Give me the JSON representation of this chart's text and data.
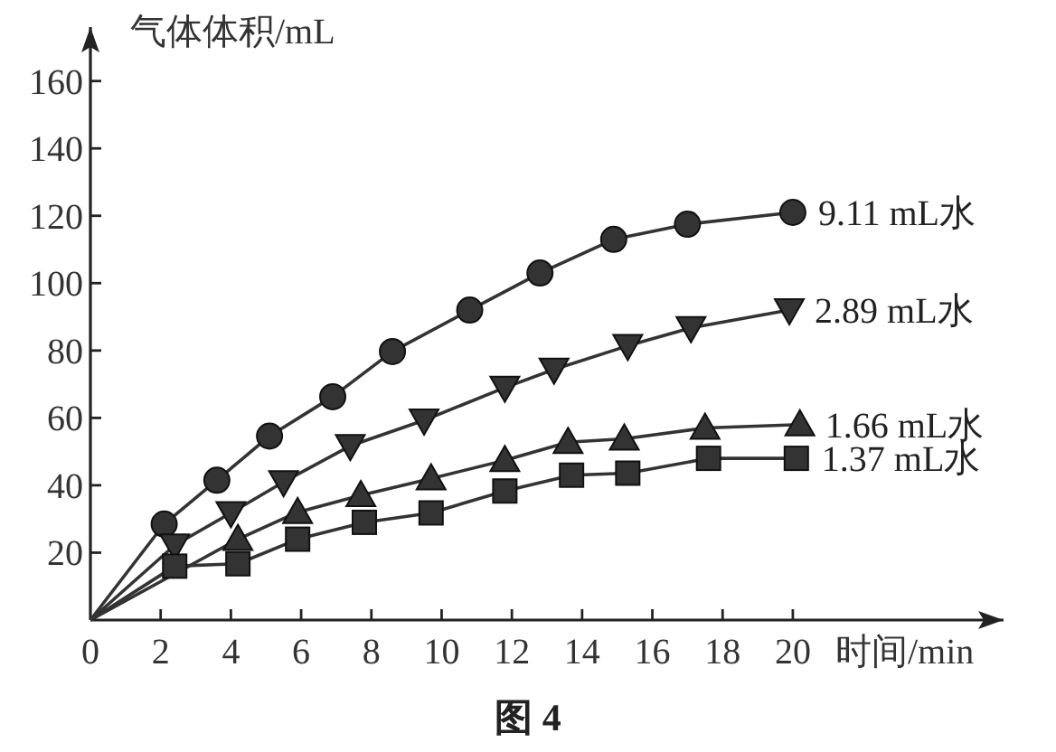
{
  "chart_data": {
    "type": "line",
    "xlabel": "时间/min",
    "ylabel": "气体体积/mL",
    "xlim": [
      0,
      26
    ],
    "ylim": [
      0,
      176
    ],
    "xticks": [
      0,
      2,
      4,
      6,
      8,
      10,
      12,
      14,
      16,
      18,
      20
    ],
    "yticks": [
      20,
      40,
      60,
      80,
      100,
      120,
      140,
      160
    ],
    "grid": false,
    "legend": false,
    "line_style": "solid",
    "series": [
      {
        "name": "9.11 mL水",
        "color": "#333333",
        "marker": "circle",
        "x": [
          0,
          2.1,
          3.6,
          5.1,
          6.9,
          8.6,
          10.8,
          12.8,
          14.9,
          17.0,
          20.0
        ],
        "values": [
          0,
          28.5,
          41.5,
          54.6,
          66.3,
          79.7,
          92,
          103,
          113,
          117.5,
          121
        ]
      },
      {
        "name": "2.89 mL水",
        "color": "#333333",
        "marker": "triangle-down",
        "x": [
          0,
          2.4,
          4.0,
          5.5,
          7.4,
          9.5,
          11.8,
          13.2,
          15.3,
          17.1,
          19.9
        ],
        "values": [
          0,
          22.2,
          31.8,
          41,
          51.7,
          59.3,
          69,
          74.4,
          81.4,
          86.7,
          92
        ]
      },
      {
        "name": "1.66 mL水",
        "color": "#333333",
        "marker": "triangle",
        "x": [
          0,
          4.2,
          5.9,
          7.7,
          9.7,
          11.8,
          13.6,
          15.2,
          17.5,
          20.2
        ],
        "values": [
          0,
          24,
          32,
          37,
          42,
          47.4,
          52.8,
          53.8,
          57,
          58
        ]
      },
      {
        "name": "1.37 mL水",
        "color": "#333333",
        "marker": "square",
        "x": [
          0,
          2.4,
          4.2,
          5.9,
          7.8,
          9.7,
          11.8,
          13.7,
          15.3,
          17.6,
          20.1
        ],
        "values": [
          0,
          16,
          16.7,
          24,
          29,
          31.8,
          38.3,
          43,
          43.6,
          48,
          48
        ]
      }
    ],
    "annotations": [
      "图 4"
    ]
  }
}
